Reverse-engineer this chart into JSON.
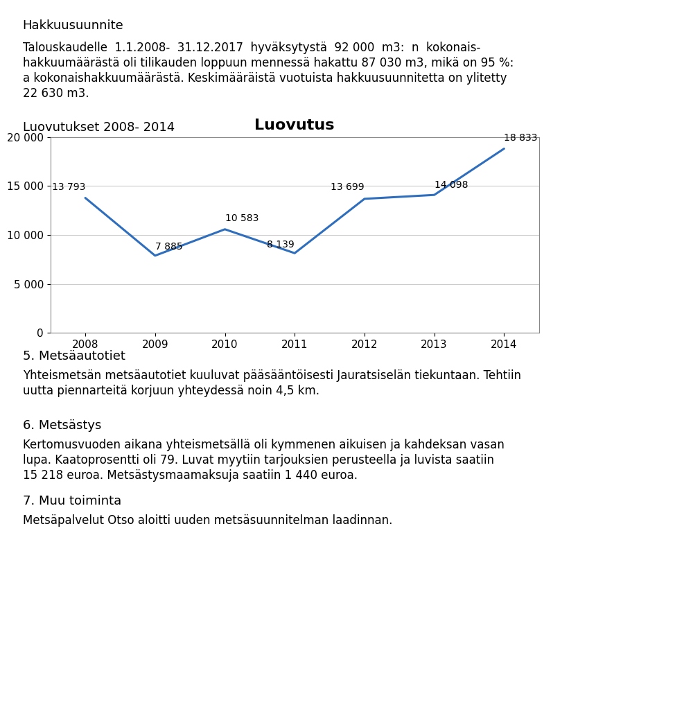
{
  "title_heading": "Hakkuusuunnite",
  "para1": "Talouskaudelle  1.1.2008-  31.12.2017  hyväksytystä  92 000  m3:  n  kokonais-\nhakkuumäärästä oli tilikauden loppuun mennessä hakattu 87 030 m3, mikä on 95 %:\na kokonaishakkuumäärästä. Keskimääräistä vuotuista hakkuusuunnitetta on ylitetty\n22 630 m3.",
  "chart_heading": "Luovutukset 2008- 2014",
  "chart_title": "Luovutus",
  "years": [
    2008,
    2009,
    2010,
    2011,
    2012,
    2013,
    2014
  ],
  "values": [
    13793,
    7885,
    10583,
    8139,
    13699,
    14098,
    18833
  ],
  "labels": [
    "13 793",
    "7 885",
    "10 583",
    "8 139",
    "13 699",
    "14 098",
    "18 833"
  ],
  "ylim": [
    0,
    20000
  ],
  "yticks": [
    0,
    5000,
    10000,
    15000,
    20000
  ],
  "ytick_labels": [
    "0",
    "5 000",
    "10 000",
    "15 000",
    "20 000"
  ],
  "line_color": "#2E6EBD",
  "line_width": 2.2,
  "chart_border_color": "#AAAAAA",
  "section5_heading": "5. Metsäautotiet",
  "section5_para": "Yhteismetsän metsäautotiet kuuluvat pääsääntöisesti Jauratsiselän tiekuntaan. Tehtiin\nuutta piennarteitä korjuun yhteydessä noin 4,5 km.",
  "section6_heading": "6. Metsästys",
  "section6_para": "Kertomusvuoden aikana yhteismetsällä oli kymmenen aikuisen ja kahdeksan vasan\nlupa. Kaatoprosentti oli 79. Luvat myytiin tarjouksien perusteella ja luvista saatiin\n15 218 euroa. Metsästysmaamaksuja saatiin 1 440 euroa.",
  "section7_heading": "7. Muu toiminta",
  "section7_para": "Metsäpalvelut Otso aloitti uuden metsäsuunnitelman laadinnan.",
  "bg_color": "#FFFFFF",
  "text_color": "#000000",
  "font_family": "DejaVu Sans",
  "body_fontsize": 12,
  "heading_fontsize": 13,
  "chart_title_fontsize": 16
}
